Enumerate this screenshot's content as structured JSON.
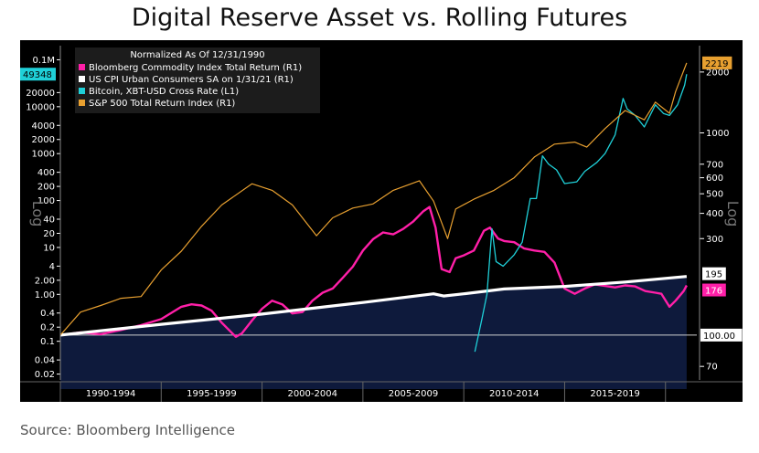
{
  "page": {
    "title": "Digital Reserve Asset vs. Rolling Futures",
    "source": "Source: Bloomberg Intelligence"
  },
  "chart_data": {
    "type": "line",
    "legend_title": "Normalized As Of 12/31/1990",
    "legend_position": "top-left",
    "grid": false,
    "background": "#000000",
    "left_axis": {
      "label": "Log",
      "scale": "log",
      "range": [
        0.015,
        200000
      ],
      "ticks": [
        "0.1M",
        "20000",
        "10000",
        "4000",
        "2000",
        "1000",
        "400",
        "200",
        "100",
        "40",
        "20",
        "10",
        "4",
        "2.00",
        "1.00",
        "0.4",
        "0.2",
        "0.1",
        "0.04",
        "0.02"
      ],
      "tick_values": [
        100000,
        20000,
        10000,
        4000,
        2000,
        1000,
        400,
        200,
        100,
        40,
        20,
        10,
        4,
        2,
        1,
        0.4,
        0.2,
        0.1,
        0.04,
        0.02
      ]
    },
    "right_axis": {
      "label": "Log",
      "scale": "log",
      "range": [
        60,
        2700
      ],
      "ticks": [
        "2000",
        "1000",
        "700",
        "600",
        "500",
        "400",
        "300",
        "70"
      ],
      "tick_values": [
        2000,
        1000,
        700,
        600,
        500,
        400,
        300,
        70
      ]
    },
    "x_axis": {
      "range": [
        1990.0,
        2021.1
      ],
      "periods": [
        {
          "label": "1990-1994",
          "start": 1990,
          "end": 1995
        },
        {
          "label": "1995-1999",
          "start": 1995,
          "end": 2000
        },
        {
          "label": "2000-2004",
          "start": 2000,
          "end": 2005
        },
        {
          "label": "2005-2009",
          "start": 2005,
          "end": 2010
        },
        {
          "label": "2010-2014",
          "start": 2010,
          "end": 2015
        },
        {
          "label": "2015-2019",
          "start": 2015,
          "end": 2020
        }
      ]
    },
    "reference_line": {
      "value": 100,
      "axis": "right",
      "label": "100.00"
    },
    "series": [
      {
        "name": "Bloomberg Commodity Index Total Return (R1)",
        "color": "#ff1fa8",
        "axis": "right",
        "last_label": "176",
        "points": [
          [
            1990.0,
            100
          ],
          [
            1991.0,
            103
          ],
          [
            1992.0,
            101
          ],
          [
            1993.0,
            106
          ],
          [
            1994.0,
            112
          ],
          [
            1995.0,
            120
          ],
          [
            1996.0,
            138
          ],
          [
            1996.5,
            142
          ],
          [
            1997.0,
            140
          ],
          [
            1997.5,
            132
          ],
          [
            1998.0,
            115
          ],
          [
            1998.7,
            98
          ],
          [
            1999.0,
            102
          ],
          [
            1999.5,
            118
          ],
          [
            2000.0,
            135
          ],
          [
            2000.5,
            148
          ],
          [
            2001.0,
            142
          ],
          [
            2001.5,
            128
          ],
          [
            2002.0,
            130
          ],
          [
            2002.5,
            148
          ],
          [
            2003.0,
            162
          ],
          [
            2003.5,
            170
          ],
          [
            2004.0,
            192
          ],
          [
            2004.5,
            218
          ],
          [
            2005.0,
            262
          ],
          [
            2005.5,
            298
          ],
          [
            2006.0,
            322
          ],
          [
            2006.5,
            315
          ],
          [
            2007.0,
            335
          ],
          [
            2007.5,
            365
          ],
          [
            2008.0,
            410
          ],
          [
            2008.3,
            430
          ],
          [
            2008.6,
            340
          ],
          [
            2008.9,
            212
          ],
          [
            2009.3,
            205
          ],
          [
            2009.6,
            240
          ],
          [
            2010.0,
            248
          ],
          [
            2010.5,
            262
          ],
          [
            2011.0,
            328
          ],
          [
            2011.3,
            340
          ],
          [
            2011.7,
            300
          ],
          [
            2012.0,
            292
          ],
          [
            2012.5,
            288
          ],
          [
            2013.0,
            268
          ],
          [
            2013.5,
            262
          ],
          [
            2014.0,
            258
          ],
          [
            2014.5,
            228
          ],
          [
            2015.0,
            170
          ],
          [
            2015.5,
            160
          ],
          [
            2016.0,
            170
          ],
          [
            2016.5,
            178
          ],
          [
            2017.0,
            175
          ],
          [
            2017.5,
            172
          ],
          [
            2018.0,
            176
          ],
          [
            2018.5,
            174
          ],
          [
            2019.0,
            165
          ],
          [
            2019.5,
            162
          ],
          [
            2019.8,
            160
          ],
          [
            2020.2,
            138
          ],
          [
            2020.5,
            148
          ],
          [
            2020.9,
            165
          ],
          [
            2021.05,
            176
          ]
        ]
      },
      {
        "name": "US CPI Urban Consumers SA  on 1/31/21 (R1)",
        "color": "#ffffff",
        "axis": "right",
        "last_label": "195",
        "points": [
          [
            1990.0,
            100
          ],
          [
            1995.0,
            113
          ],
          [
            2000.0,
            127
          ],
          [
            2005.0,
            145
          ],
          [
            2008.5,
            160
          ],
          [
            2009.0,
            156
          ],
          [
            2010.0,
            160
          ],
          [
            2012.0,
            169
          ],
          [
            2015.0,
            174
          ],
          [
            2018.0,
            183
          ],
          [
            2021.05,
            195
          ]
        ]
      },
      {
        "name": "Bitcoin, XBT-USD Cross Rate (L1)",
        "color": "#1fd0d8",
        "axis": "left",
        "last_label": "49348",
        "points": [
          [
            2010.55,
            0.06
          ],
          [
            2010.9,
            0.3
          ],
          [
            2011.15,
            1
          ],
          [
            2011.4,
            25
          ],
          [
            2011.6,
            5
          ],
          [
            2011.95,
            4
          ],
          [
            2012.5,
            7
          ],
          [
            2012.9,
            13
          ],
          [
            2013.3,
            110
          ],
          [
            2013.6,
            110
          ],
          [
            2013.9,
            900
          ],
          [
            2014.2,
            600
          ],
          [
            2014.6,
            450
          ],
          [
            2015.0,
            230
          ],
          [
            2015.6,
            250
          ],
          [
            2016.0,
            420
          ],
          [
            2016.6,
            650
          ],
          [
            2017.0,
            1000
          ],
          [
            2017.5,
            2500
          ],
          [
            2017.9,
            15000
          ],
          [
            2018.1,
            9000
          ],
          [
            2018.5,
            6500
          ],
          [
            2018.95,
            3700
          ],
          [
            2019.5,
            11000
          ],
          [
            2019.9,
            7200
          ],
          [
            2020.2,
            6500
          ],
          [
            2020.6,
            11000
          ],
          [
            2020.95,
            29000
          ],
          [
            2021.05,
            49348
          ]
        ]
      },
      {
        "name": "S&P 500 Total Return Index (R1)",
        "color": "#e8a030",
        "axis": "right",
        "last_label": "2219",
        "points": [
          [
            1990.0,
            100
          ],
          [
            1991.0,
            130
          ],
          [
            1992.0,
            140
          ],
          [
            1993.0,
            152
          ],
          [
            1994.0,
            155
          ],
          [
            1995.0,
            210
          ],
          [
            1996.0,
            260
          ],
          [
            1997.0,
            345
          ],
          [
            1998.0,
            440
          ],
          [
            1999.5,
            560
          ],
          [
            2000.5,
            520
          ],
          [
            2001.5,
            440
          ],
          [
            2002.7,
            310
          ],
          [
            2003.5,
            380
          ],
          [
            2004.5,
            425
          ],
          [
            2005.5,
            445
          ],
          [
            2006.5,
            520
          ],
          [
            2007.8,
            580
          ],
          [
            2008.5,
            460
          ],
          [
            2009.2,
            300
          ],
          [
            2009.6,
            420
          ],
          [
            2010.5,
            470
          ],
          [
            2011.5,
            520
          ],
          [
            2012.5,
            600
          ],
          [
            2013.5,
            760
          ],
          [
            2014.5,
            880
          ],
          [
            2015.5,
            900
          ],
          [
            2016.1,
            850
          ],
          [
            2017.0,
            1050
          ],
          [
            2018.0,
            1290
          ],
          [
            2018.95,
            1160
          ],
          [
            2019.5,
            1420
          ],
          [
            2020.2,
            1250
          ],
          [
            2020.5,
            1600
          ],
          [
            2021.05,
            2219
          ]
        ]
      }
    ]
  }
}
